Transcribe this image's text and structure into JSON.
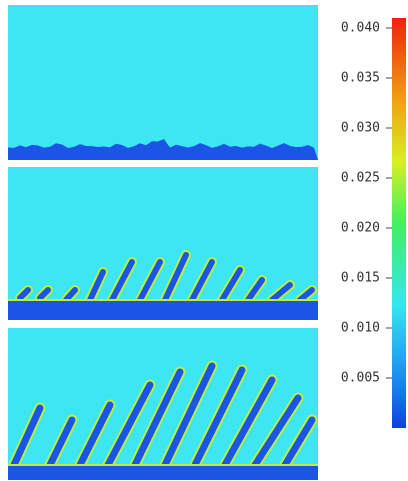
{
  "chart_data": {
    "type": "colorbar",
    "ylim": [
      0,
      0.041
    ],
    "yticks": [
      {
        "value": 0.005,
        "label": "0.005"
      },
      {
        "value": 0.01,
        "label": "0.010"
      },
      {
        "value": 0.015,
        "label": "0.015"
      },
      {
        "value": 0.02,
        "label": "0.020"
      },
      {
        "value": 0.025,
        "label": "0.025"
      },
      {
        "value": 0.03,
        "label": "0.030"
      },
      {
        "value": 0.035,
        "label": "0.035"
      },
      {
        "value": 0.04,
        "label": "0.040"
      }
    ]
  }
}
